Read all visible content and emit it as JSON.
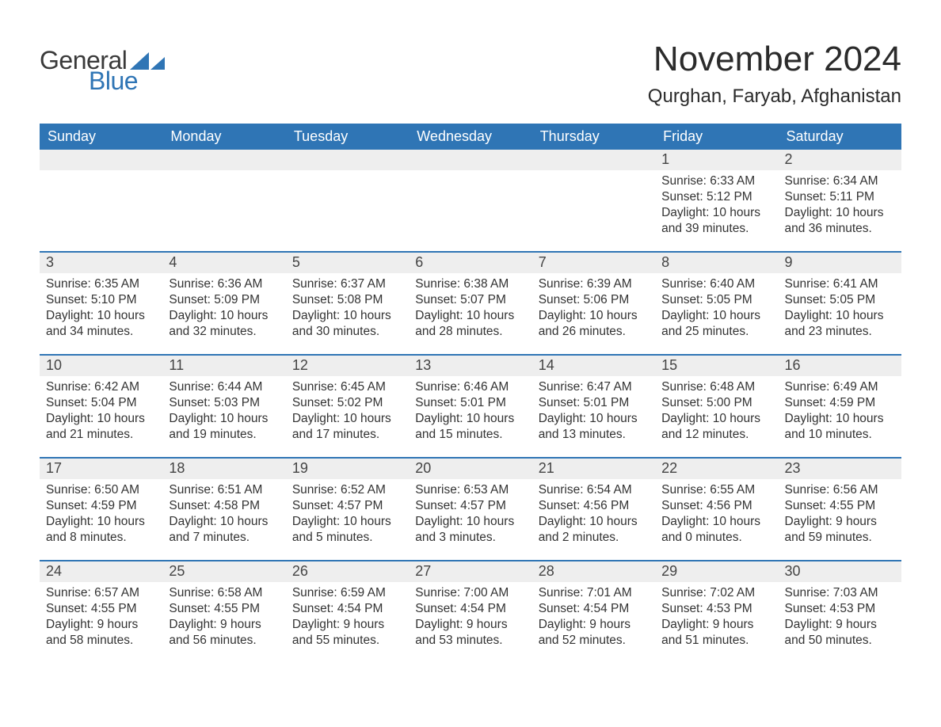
{
  "logo": {
    "text1": "General",
    "text2": "Blue",
    "accent_color": "#2f75b5"
  },
  "title": "November 2024",
  "location": "Qurghan, Faryab, Afghanistan",
  "colors": {
    "header_bg": "#2f75b5",
    "header_text": "#ffffff",
    "daynum_bg": "#eeeeee",
    "row_border": "#2f75b5",
    "body_text": "#333333",
    "page_bg": "#ffffff"
  },
  "weekday_labels": [
    "Sunday",
    "Monday",
    "Tuesday",
    "Wednesday",
    "Thursday",
    "Friday",
    "Saturday"
  ],
  "field_labels": {
    "sunrise": "Sunrise: ",
    "sunset": "Sunset: ",
    "daylight": "Daylight: "
  },
  "weeks": [
    [
      null,
      null,
      null,
      null,
      null,
      {
        "n": "1",
        "sunrise": "6:33 AM",
        "sunset": "5:12 PM",
        "daylight": "10 hours and 39 minutes."
      },
      {
        "n": "2",
        "sunrise": "6:34 AM",
        "sunset": "5:11 PM",
        "daylight": "10 hours and 36 minutes."
      }
    ],
    [
      {
        "n": "3",
        "sunrise": "6:35 AM",
        "sunset": "5:10 PM",
        "daylight": "10 hours and 34 minutes."
      },
      {
        "n": "4",
        "sunrise": "6:36 AM",
        "sunset": "5:09 PM",
        "daylight": "10 hours and 32 minutes."
      },
      {
        "n": "5",
        "sunrise": "6:37 AM",
        "sunset": "5:08 PM",
        "daylight": "10 hours and 30 minutes."
      },
      {
        "n": "6",
        "sunrise": "6:38 AM",
        "sunset": "5:07 PM",
        "daylight": "10 hours and 28 minutes."
      },
      {
        "n": "7",
        "sunrise": "6:39 AM",
        "sunset": "5:06 PM",
        "daylight": "10 hours and 26 minutes."
      },
      {
        "n": "8",
        "sunrise": "6:40 AM",
        "sunset": "5:05 PM",
        "daylight": "10 hours and 25 minutes."
      },
      {
        "n": "9",
        "sunrise": "6:41 AM",
        "sunset": "5:05 PM",
        "daylight": "10 hours and 23 minutes."
      }
    ],
    [
      {
        "n": "10",
        "sunrise": "6:42 AM",
        "sunset": "5:04 PM",
        "daylight": "10 hours and 21 minutes."
      },
      {
        "n": "11",
        "sunrise": "6:44 AM",
        "sunset": "5:03 PM",
        "daylight": "10 hours and 19 minutes."
      },
      {
        "n": "12",
        "sunrise": "6:45 AM",
        "sunset": "5:02 PM",
        "daylight": "10 hours and 17 minutes."
      },
      {
        "n": "13",
        "sunrise": "6:46 AM",
        "sunset": "5:01 PM",
        "daylight": "10 hours and 15 minutes."
      },
      {
        "n": "14",
        "sunrise": "6:47 AM",
        "sunset": "5:01 PM",
        "daylight": "10 hours and 13 minutes."
      },
      {
        "n": "15",
        "sunrise": "6:48 AM",
        "sunset": "5:00 PM",
        "daylight": "10 hours and 12 minutes."
      },
      {
        "n": "16",
        "sunrise": "6:49 AM",
        "sunset": "4:59 PM",
        "daylight": "10 hours and 10 minutes."
      }
    ],
    [
      {
        "n": "17",
        "sunrise": "6:50 AM",
        "sunset": "4:59 PM",
        "daylight": "10 hours and 8 minutes."
      },
      {
        "n": "18",
        "sunrise": "6:51 AM",
        "sunset": "4:58 PM",
        "daylight": "10 hours and 7 minutes."
      },
      {
        "n": "19",
        "sunrise": "6:52 AM",
        "sunset": "4:57 PM",
        "daylight": "10 hours and 5 minutes."
      },
      {
        "n": "20",
        "sunrise": "6:53 AM",
        "sunset": "4:57 PM",
        "daylight": "10 hours and 3 minutes."
      },
      {
        "n": "21",
        "sunrise": "6:54 AM",
        "sunset": "4:56 PM",
        "daylight": "10 hours and 2 minutes."
      },
      {
        "n": "22",
        "sunrise": "6:55 AM",
        "sunset": "4:56 PM",
        "daylight": "10 hours and 0 minutes."
      },
      {
        "n": "23",
        "sunrise": "6:56 AM",
        "sunset": "4:55 PM",
        "daylight": "9 hours and 59 minutes."
      }
    ],
    [
      {
        "n": "24",
        "sunrise": "6:57 AM",
        "sunset": "4:55 PM",
        "daylight": "9 hours and 58 minutes."
      },
      {
        "n": "25",
        "sunrise": "6:58 AM",
        "sunset": "4:55 PM",
        "daylight": "9 hours and 56 minutes."
      },
      {
        "n": "26",
        "sunrise": "6:59 AM",
        "sunset": "4:54 PM",
        "daylight": "9 hours and 55 minutes."
      },
      {
        "n": "27",
        "sunrise": "7:00 AM",
        "sunset": "4:54 PM",
        "daylight": "9 hours and 53 minutes."
      },
      {
        "n": "28",
        "sunrise": "7:01 AM",
        "sunset": "4:54 PM",
        "daylight": "9 hours and 52 minutes."
      },
      {
        "n": "29",
        "sunrise": "7:02 AM",
        "sunset": "4:53 PM",
        "daylight": "9 hours and 51 minutes."
      },
      {
        "n": "30",
        "sunrise": "7:03 AM",
        "sunset": "4:53 PM",
        "daylight": "9 hours and 50 minutes."
      }
    ]
  ]
}
